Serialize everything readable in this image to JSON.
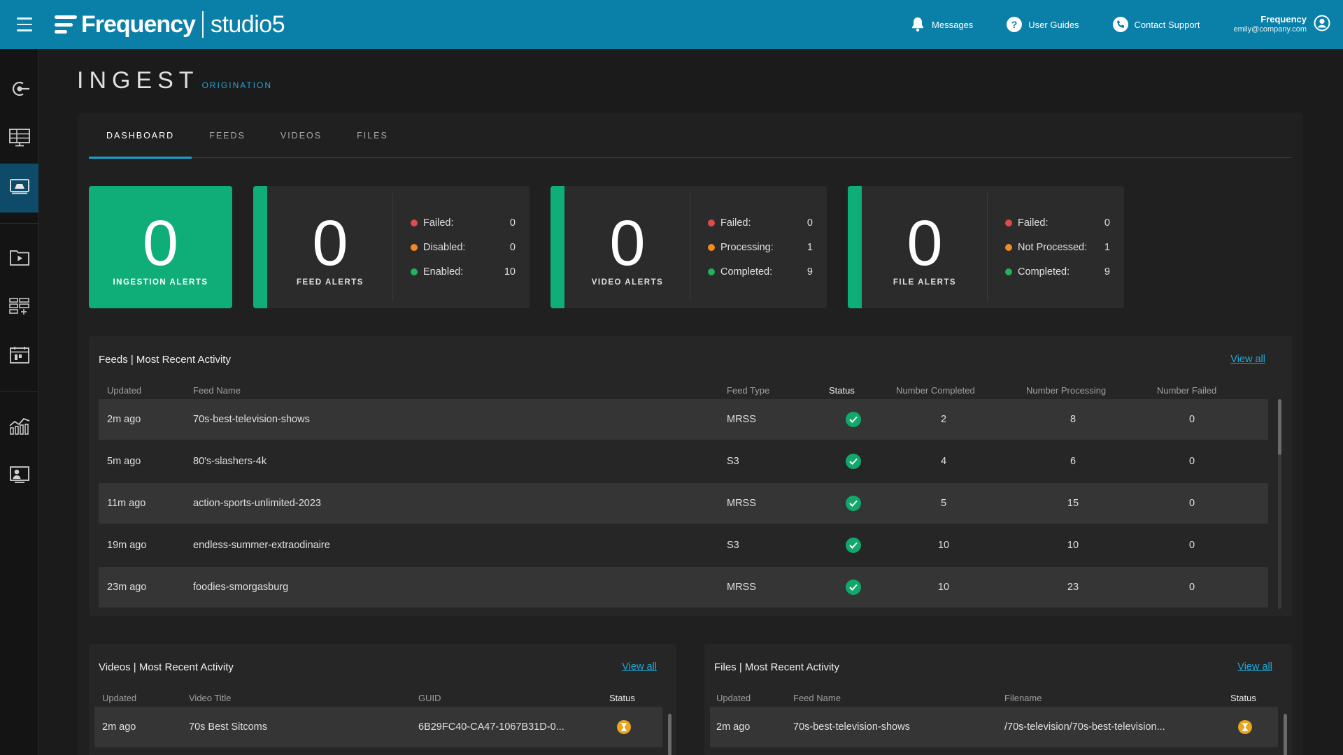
{
  "brand": {
    "name": "Frequency",
    "product": "studio",
    "product_num": "5"
  },
  "top_actions": {
    "messages": "Messages",
    "user_guides": "User Guides",
    "contact_support": "Contact Support"
  },
  "user": {
    "name": "Frequency",
    "email": "emily@company.com"
  },
  "page": {
    "title": "INGEST",
    "subtitle": "ORIGINATION"
  },
  "tabs": [
    "DASHBOARD",
    "FEEDS",
    "VIDEOS",
    "FILES"
  ],
  "active_tab": "DASHBOARD",
  "alerts": {
    "ingestion": {
      "count": "0",
      "label": "INGESTION ALERTS"
    },
    "feed": {
      "count": "0",
      "label": "FEED ALERTS",
      "stats": [
        {
          "label": "Failed:",
          "value": "0"
        },
        {
          "label": "Disabled:",
          "value": "0"
        },
        {
          "label": "Enabled:",
          "value": "10"
        }
      ]
    },
    "video": {
      "count": "0",
      "label": "VIDEO ALERTS",
      "stats": [
        {
          "label": "Failed:",
          "value": "0"
        },
        {
          "label": "Processing:",
          "value": "1"
        },
        {
          "label": "Completed:",
          "value": "9"
        }
      ]
    },
    "file": {
      "count": "0",
      "label": "FILE ALERTS",
      "stats": [
        {
          "label": "Failed:",
          "value": "0"
        },
        {
          "label": "Not Processed:",
          "value": "1"
        },
        {
          "label": "Completed:",
          "value": "9"
        }
      ]
    }
  },
  "feeds_panel": {
    "title": "Feeds | Most Recent Activity",
    "view_all": "View all",
    "columns": [
      "Updated",
      "Feed Name",
      "Feed Type",
      "Status",
      "Number Completed",
      "Number Processing",
      "Number Failed"
    ],
    "rows": [
      {
        "updated": "2m ago",
        "name": "70s-best-television-shows",
        "type": "MRSS",
        "completed": "2",
        "processing": "8",
        "failed": "0"
      },
      {
        "updated": "5m ago",
        "name": "80's-slashers-4k",
        "type": "S3",
        "completed": "4",
        "processing": "6",
        "failed": "0"
      },
      {
        "updated": "11m ago",
        "name": "action-sports-unlimited-2023",
        "type": "MRSS",
        "completed": "5",
        "processing": "15",
        "failed": "0"
      },
      {
        "updated": "19m ago",
        "name": "endless-summer-extraodinaire",
        "type": "S3",
        "completed": "10",
        "processing": "10",
        "failed": "0"
      },
      {
        "updated": "23m ago",
        "name": "foodies-smorgasburg",
        "type": "MRSS",
        "completed": "10",
        "processing": "23",
        "failed": "0"
      }
    ]
  },
  "videos_panel": {
    "title": "Videos | Most Recent Activity",
    "view_all": "View all",
    "columns": [
      "Updated",
      "Video Title",
      "GUID",
      "Status"
    ],
    "rows": [
      {
        "updated": "2m ago",
        "title": "70s Best Sitcoms",
        "guid": "6B29FC40-CA47-1067B31D-0..."
      }
    ]
  },
  "files_panel": {
    "title": "Files | Most Recent Activity",
    "view_all": "View all",
    "columns": [
      "Updated",
      "Feed Name",
      "Filename",
      "Status"
    ],
    "rows": [
      {
        "updated": "2m ago",
        "feed": "70s-best-television-shows",
        "filename": "/70s-television/70s-best-television..."
      }
    ]
  },
  "colors": {
    "topbar": "#0a7fa8",
    "accent": "#17a3d1",
    "green": "#0fae78",
    "pending": "#e8a520"
  }
}
